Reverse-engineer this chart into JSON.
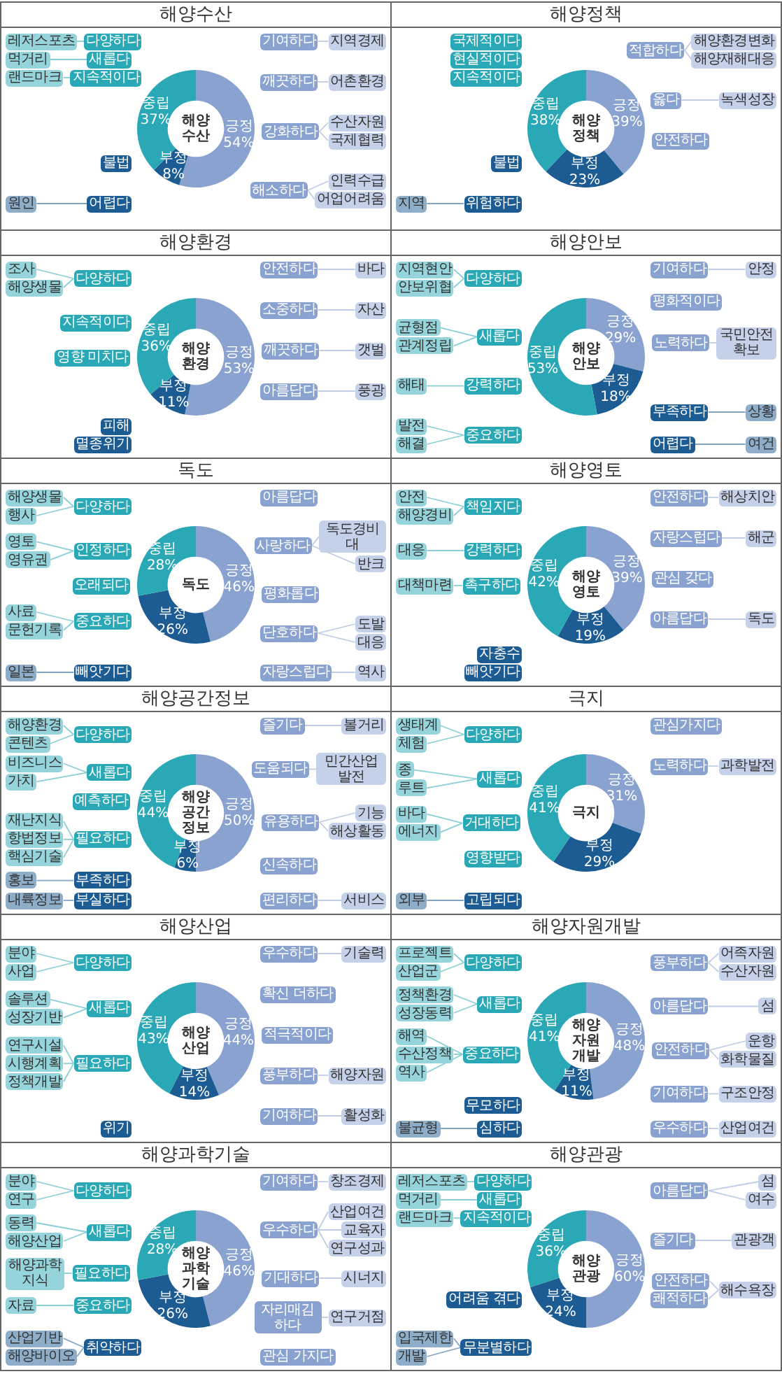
{
  "chart_data": [
    {
      "type": "donut",
      "title": "해양수산",
      "categories": [
        "긍정",
        "부정",
        "중립"
      ],
      "values": [
        54,
        8,
        37
      ],
      "value_labels": [
        "54%",
        "8%",
        "37%"
      ],
      "colors": [
        "#8aa2d0",
        "#1d5b93",
        "#2aa8b6"
      ],
      "annotations": [
        "다양하다",
        "새롭다",
        "지속적이다",
        "레저스포츠",
        "먹거리",
        "랜드마크",
        "불법",
        "어렵다",
        "원인",
        "기여하다",
        "지역경제",
        "깨끗하다",
        "어촌환경",
        "강화하다",
        "수산자원",
        "국제협력",
        "해소하다",
        "인력수급",
        "어업어려움"
      ]
    },
    {
      "type": "donut",
      "title": "해양정책",
      "categories": [
        "긍정",
        "부정",
        "중립"
      ],
      "values": [
        39,
        23,
        38
      ],
      "value_labels": [
        "39%",
        "23%",
        "38%"
      ],
      "colors": [
        "#8aa2d0",
        "#1d5b93",
        "#2aa8b6"
      ],
      "annotations": [
        "국제적이다",
        "현실적이다",
        "지속적이다",
        "불법",
        "위험하다",
        "지역",
        "적합하다",
        "해양환경변화",
        "해양재해대응",
        "옳다",
        "녹색성장",
        "안전하다"
      ]
    },
    {
      "type": "donut",
      "title": "해양환경",
      "categories": [
        "긍정",
        "부정",
        "중립"
      ],
      "values": [
        53,
        11,
        36
      ],
      "value_labels": [
        "53%",
        "11%",
        "36%"
      ],
      "colors": [
        "#8aa2d0",
        "#1d5b93",
        "#2aa8b6"
      ],
      "annotations": [
        "다양하다",
        "조사",
        "해양생물",
        "지속적이다",
        "영향 미치다",
        "피해",
        "멸종위기",
        "안전하다",
        "바다",
        "소중하다",
        "자산",
        "깨끗하다",
        "갯벌",
        "아름답다",
        "풍광"
      ]
    },
    {
      "type": "donut",
      "title": "해양안보",
      "categories": [
        "긍정",
        "부정",
        "중립"
      ],
      "values": [
        29,
        18,
        53
      ],
      "value_labels": [
        "29%",
        "18%",
        "53%"
      ],
      "colors": [
        "#8aa2d0",
        "#1d5b93",
        "#2aa8b6"
      ],
      "annotations": [
        "다양하다",
        "지역현안",
        "안보위협",
        "새롭다",
        "균형점",
        "관계정립",
        "강력하다",
        "해태",
        "중요하다",
        "발전",
        "해결",
        "기여하다",
        "안정",
        "평화적이다",
        "노력하다",
        "국민안전확보",
        "부족하다",
        "상황",
        "어렵다",
        "여건"
      ]
    },
    {
      "type": "donut",
      "title": "독도",
      "categories": [
        "긍정",
        "부정",
        "중립"
      ],
      "values": [
        46,
        26,
        28
      ],
      "value_labels": [
        "46%",
        "26%",
        "28%"
      ],
      "colors": [
        "#8aa2d0",
        "#1d5b93",
        "#2aa8b6"
      ],
      "annotations": [
        "다양하다",
        "해양생물",
        "행사",
        "인정하다",
        "영토",
        "영유권",
        "오래되다",
        "중요하다",
        "사료",
        "문헌기록",
        "빼앗기다",
        "일본",
        "아름답다",
        "사랑하다",
        "독도경비대",
        "반크",
        "평화롭다",
        "단호하다",
        "도발",
        "대응",
        "자랑스럽다",
        "역사"
      ]
    },
    {
      "type": "donut",
      "title": "해양영토",
      "categories": [
        "긍정",
        "부정",
        "중립"
      ],
      "values": [
        39,
        19,
        42
      ],
      "value_labels": [
        "39%",
        "19%",
        "42%"
      ],
      "colors": [
        "#8aa2d0",
        "#1d5b93",
        "#2aa8b6"
      ],
      "annotations": [
        "책임지다",
        "안전",
        "해양경비",
        "강력하다",
        "대응",
        "촉구하다",
        "대책마련",
        "자충수",
        "빼앗기다",
        "안전하다",
        "해상치안",
        "자랑스럽다",
        "해군",
        "관심 갖다",
        "아름답다",
        "독도"
      ]
    },
    {
      "type": "donut",
      "title": "해양공간정보",
      "categories": [
        "긍정",
        "부정",
        "중립"
      ],
      "values": [
        50,
        6,
        44
      ],
      "value_labels": [
        "50%",
        "6%",
        "44%"
      ],
      "colors": [
        "#8aa2d0",
        "#1d5b93",
        "#2aa8b6"
      ],
      "annotations": [
        "다양하다",
        "해양환경",
        "콘텐츠",
        "새롭다",
        "비즈니스",
        "가치",
        "예측하다",
        "필요하다",
        "재난지식",
        "항법정보",
        "핵심기술",
        "부족하다",
        "홍보",
        "부실하다",
        "내륙정보",
        "즐기다",
        "볼거리",
        "도움되다",
        "민간산업발전",
        "유용하다",
        "기능",
        "해상활동",
        "신속하다",
        "편리하다",
        "서비스"
      ]
    },
    {
      "type": "donut",
      "title": "극지",
      "categories": [
        "긍정",
        "부정",
        "중립"
      ],
      "values": [
        31,
        29,
        41
      ],
      "value_labels": [
        "31%",
        "29%",
        "41%"
      ],
      "colors": [
        "#8aa2d0",
        "#1d5b93",
        "#2aa8b6"
      ],
      "annotations": [
        "다양하다",
        "생태계",
        "체험",
        "새롭다",
        "종",
        "루트",
        "거대하다",
        "바다",
        "에너지",
        "영향받다",
        "고립되다",
        "외부",
        "관심가지다",
        "노력하다",
        "과학발전"
      ]
    },
    {
      "type": "donut",
      "title": "해양산업",
      "categories": [
        "긍정",
        "부정",
        "중립"
      ],
      "values": [
        44,
        14,
        43
      ],
      "value_labels": [
        "44%",
        "14%",
        "43%"
      ],
      "colors": [
        "#8aa2d0",
        "#1d5b93",
        "#2aa8b6"
      ],
      "annotations": [
        "다양하다",
        "분야",
        "사업",
        "새롭다",
        "솔루션",
        "성장기반",
        "필요하다",
        "연구시설",
        "시행계획",
        "정책개발",
        "위기",
        "우수하다",
        "기술력",
        "확신 더하다",
        "적극적이다",
        "풍부하다",
        "해양자원",
        "기여하다",
        "활성화"
      ]
    },
    {
      "type": "donut",
      "title": "해양자원개발",
      "categories": [
        "긍정",
        "부정",
        "중립"
      ],
      "values": [
        48,
        11,
        41
      ],
      "value_labels": [
        "48%",
        "11%",
        "41%"
      ],
      "colors": [
        "#8aa2d0",
        "#1d5b93",
        "#2aa8b6"
      ],
      "annotations": [
        "다양하다",
        "프로젝트",
        "산업군",
        "새롭다",
        "정책환경",
        "성장동력",
        "중요하다",
        "해역",
        "수산정책",
        "역사",
        "무모하다",
        "심하다",
        "불균형",
        "풍부하다",
        "어족자원",
        "수산자원",
        "아름답다",
        "섬",
        "안전하다",
        "운항",
        "화학물질",
        "기여하다",
        "구조안정",
        "우수하다",
        "산업여건"
      ]
    },
    {
      "type": "donut",
      "title": "해양과학기술",
      "categories": [
        "긍정",
        "부정",
        "중립"
      ],
      "values": [
        46,
        26,
        28
      ],
      "value_labels": [
        "46%",
        "26%",
        "28%"
      ],
      "colors": [
        "#8aa2d0",
        "#1d5b93",
        "#2aa8b6"
      ],
      "annotations": [
        "다양하다",
        "분야",
        "연구",
        "새롭다",
        "동력",
        "해양산업",
        "필요하다",
        "해양과학지식",
        "중요하다",
        "자료",
        "취약하다",
        "산업기반",
        "해양바이오",
        "기여하다",
        "창조경제",
        "우수하다",
        "산업여건",
        "교육자",
        "연구성과",
        "기대하다",
        "시너지",
        "자리매김하다",
        "연구거점",
        "관심 가지다"
      ]
    },
    {
      "type": "donut",
      "title": "해양관광",
      "categories": [
        "긍정",
        "부정",
        "중립"
      ],
      "values": [
        60,
        24,
        36
      ],
      "value_labels": [
        "60%",
        "24%",
        "36%"
      ],
      "colors": [
        "#8aa2d0",
        "#1d5b93",
        "#2aa8b6"
      ],
      "annotations": [
        "다양하다",
        "새롭다",
        "지속적이다",
        "레저스포츠",
        "먹거리",
        "랜드마크",
        "어려움 겪다",
        "무분별하다",
        "입국제한",
        "개발",
        "아름답다",
        "섬",
        "여수",
        "즐기다",
        "관광객",
        "안전하다",
        "쾌적하다",
        "해수욕장"
      ]
    }
  ]
}
